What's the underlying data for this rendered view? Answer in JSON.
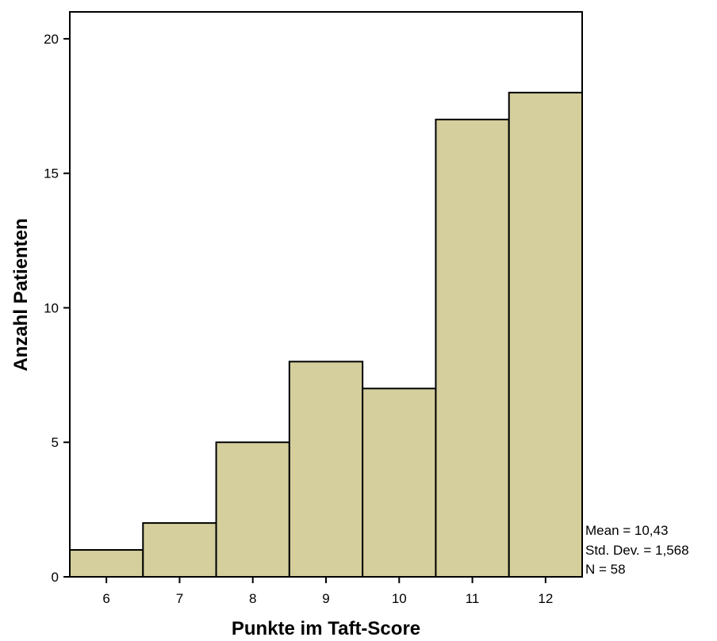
{
  "chart_data": {
    "type": "bar",
    "categories": [
      "6",
      "7",
      "8",
      "9",
      "10",
      "11",
      "12"
    ],
    "values": [
      1,
      2,
      5,
      8,
      7,
      17,
      18
    ],
    "title": "",
    "xlabel": "Punkte im Taft-Score",
    "ylabel": "Anzahl Patienten",
    "ylim": [
      0,
      21
    ],
    "yticks": [
      0,
      5,
      10,
      15,
      20
    ],
    "grid": false,
    "bar_color": "#d4cf9c",
    "bar_edge_color": "#000000",
    "stats": {
      "mean": "Mean = 10,43",
      "std_dev": "Std. Dev. = 1,568",
      "n": "N = 58"
    }
  }
}
